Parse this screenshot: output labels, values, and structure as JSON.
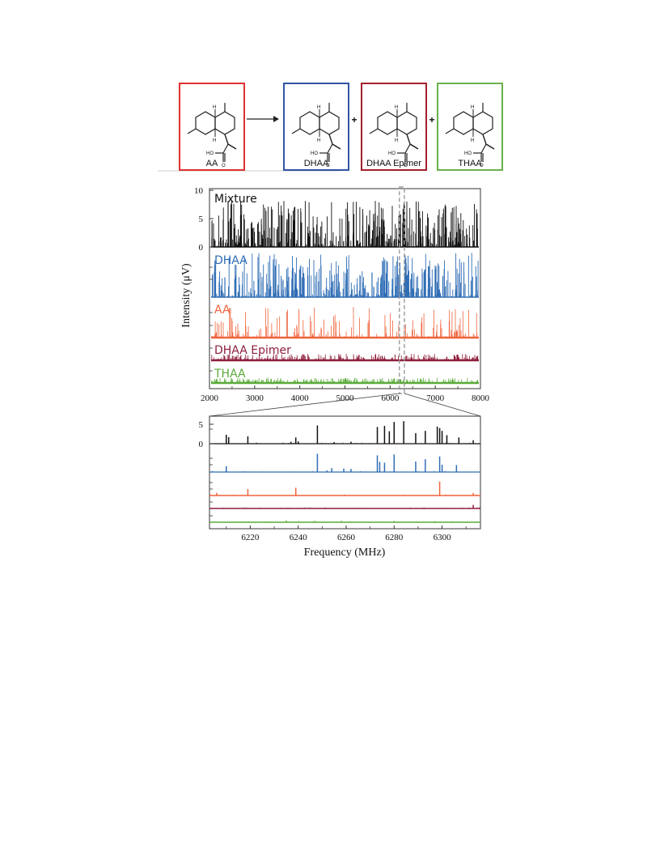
{
  "scheme": {
    "reactant": {
      "label": "AA",
      "color": "#e03030"
    },
    "products": [
      {
        "label": "DHAA",
        "color": "#2f55a4"
      },
      {
        "label": "DHAA Epimer",
        "color": "#a3202c"
      },
      {
        "label": "THAA",
        "color": "#6ab04c"
      }
    ],
    "plus": "+",
    "arrow_icon": "right-arrow-icon"
  },
  "chart_data": [
    {
      "type": "line",
      "subtype": "stacked spectra",
      "xlabel": "",
      "ylabel": "Intensity (μV)",
      "xlim": [
        2000,
        8000
      ],
      "xticks": [
        "2000",
        "3000",
        "4000",
        "5000",
        "6000",
        "7000",
        "8000"
      ],
      "yticks": [
        "10",
        "5",
        "0"
      ],
      "ylim_top_trace": [
        0,
        10
      ],
      "highlight_window": [
        6205,
        6315
      ],
      "series": [
        {
          "name": "Mixture",
          "color": "#111111",
          "max_intensity": 8.2
        },
        {
          "name": "DHAA",
          "color": "#2f6db5",
          "max_intensity": 7.8
        },
        {
          "name": "AA",
          "color": "#f0643c",
          "max_intensity": 7.0
        },
        {
          "name": "DHAA Epimer",
          "color": "#8e1e3c",
          "max_intensity": 1.5
        },
        {
          "name": "THAA",
          "color": "#5aab3a",
          "max_intensity": 1.2
        }
      ]
    },
    {
      "type": "line",
      "subtype": "stacked spectra zoom",
      "xlabel": "Frequency (MHz)",
      "ylabel": "",
      "xlim": [
        6203,
        6316
      ],
      "xticks": [
        "6220",
        "6240",
        "6260",
        "6280",
        "6300"
      ],
      "yticks": [
        "5",
        "0"
      ],
      "series": [
        {
          "name": "Mixture",
          "color": "#111111",
          "peaks": [
            [
              6210,
              2.3
            ],
            [
              6211,
              1.7
            ],
            [
              6219,
              1.9
            ],
            [
              6237,
              0.5
            ],
            [
              6239,
              1.6
            ],
            [
              6240,
              0.6
            ],
            [
              6248,
              4.7
            ],
            [
              6255,
              0.4
            ],
            [
              6262,
              0.5
            ],
            [
              6273,
              4.3
            ],
            [
              6276,
              4.6
            ],
            [
              6278,
              3.2
            ],
            [
              6280,
              5.6
            ],
            [
              6284,
              5.8
            ],
            [
              6289,
              2.7
            ],
            [
              6293,
              3.3
            ],
            [
              6298,
              4.4
            ],
            [
              6299,
              4.0
            ],
            [
              6300,
              3.3
            ],
            [
              6302,
              2.2
            ],
            [
              6307,
              1.6
            ],
            [
              6313,
              0.9
            ]
          ]
        },
        {
          "name": "DHAA",
          "color": "#2f6db5",
          "peaks": [
            [
              6210,
              1.5
            ],
            [
              6248,
              4.7
            ],
            [
              6252,
              0.4
            ],
            [
              6254,
              1.0
            ],
            [
              6259,
              0.9
            ],
            [
              6262,
              0.8
            ],
            [
              6273,
              4.3
            ],
            [
              6274,
              2.6
            ],
            [
              6276,
              2.4
            ],
            [
              6280,
              4.5
            ],
            [
              6289,
              2.7
            ],
            [
              6293,
              3.3
            ],
            [
              6299,
              4.0
            ],
            [
              6300,
              1.9
            ],
            [
              6306,
              1.8
            ]
          ]
        },
        {
          "name": "AA",
          "color": "#f0643c",
          "peaks": [
            [
              6206,
              0.8
            ],
            [
              6219,
              2.0
            ],
            [
              6239,
              2.4
            ],
            [
              6299,
              4.3
            ],
            [
              6313,
              0.8
            ]
          ]
        },
        {
          "name": "DHAA Epimer",
          "color": "#8e1e3c",
          "peaks": [
            [
              6233,
              0.2
            ],
            [
              6265,
              0.2
            ],
            [
              6313,
              1.1
            ]
          ]
        },
        {
          "name": "THAA",
          "color": "#5aab3a",
          "peaks": [
            [
              6235,
              0.5
            ],
            [
              6247,
              0.4
            ],
            [
              6258,
              0.4
            ],
            [
              6280,
              0.4
            ],
            [
              6297,
              0.3
            ]
          ]
        }
      ]
    }
  ]
}
